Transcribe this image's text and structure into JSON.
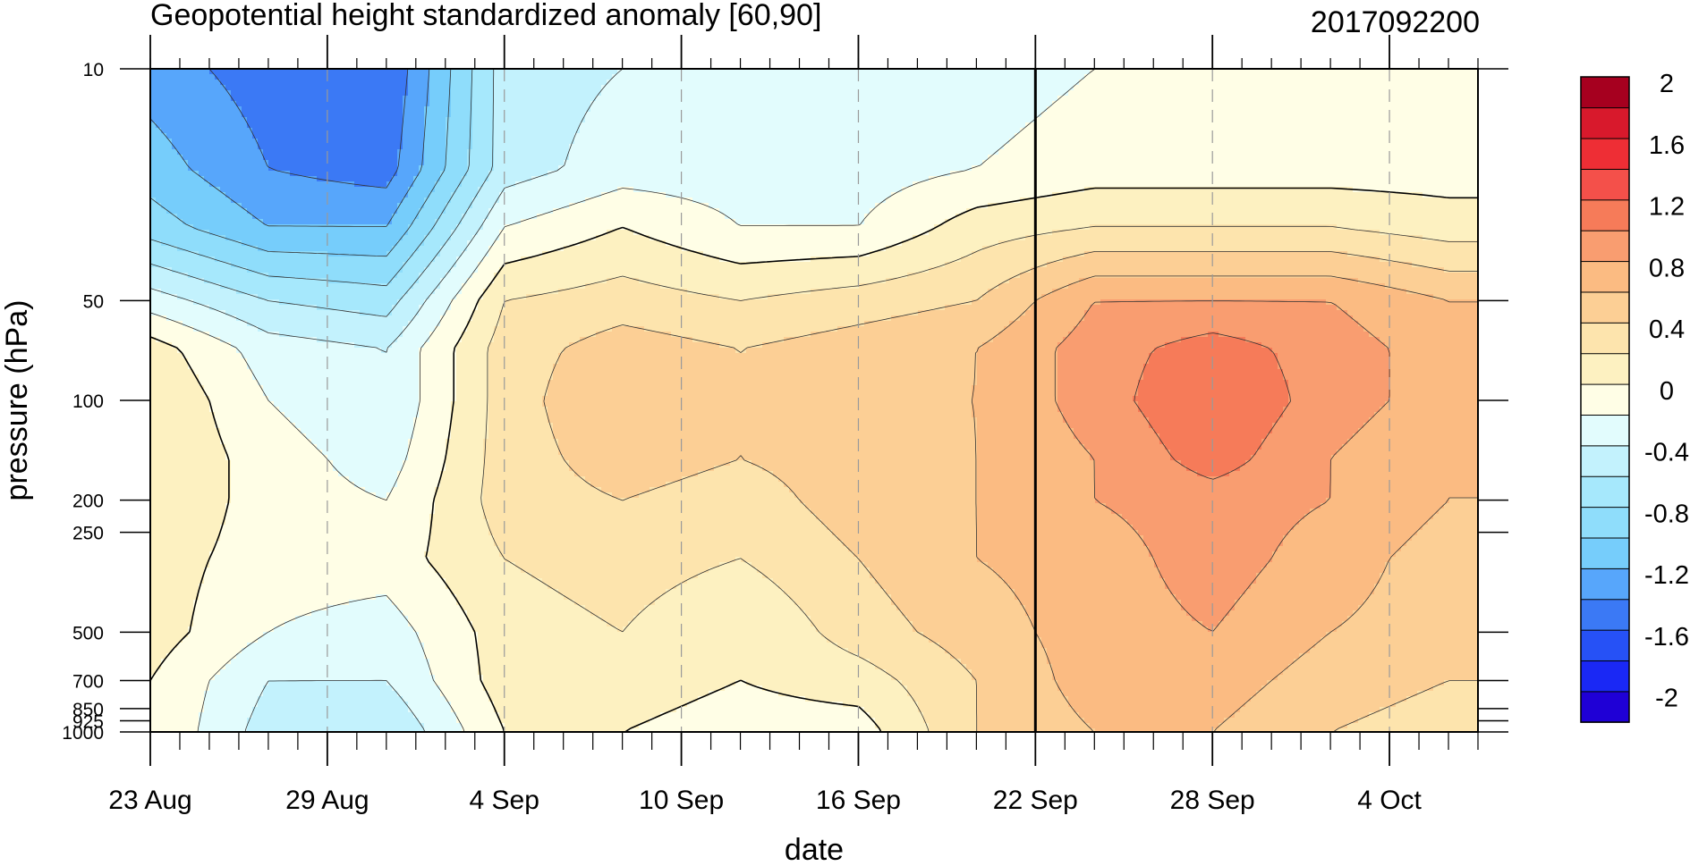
{
  "chart_data": {
    "type": "heatmap",
    "title": "Geopotential height standardized anomaly [60,90]",
    "subtitle": "2017092200",
    "xlabel": "date",
    "ylabel": "pressure (hPa)",
    "y_scale": "log",
    "y_reversed": true,
    "ylim": [
      1000,
      10
    ],
    "xlim": [
      "2017-08-23",
      "2017-10-07"
    ],
    "x_ticks": [
      {
        "date": "2017-08-23",
        "label": "23 Aug"
      },
      {
        "date": "2017-08-29",
        "label": "29 Aug"
      },
      {
        "date": "2017-09-04",
        "label": "4 Sep"
      },
      {
        "date": "2017-09-10",
        "label": "10 Sep"
      },
      {
        "date": "2017-09-16",
        "label": "16 Sep"
      },
      {
        "date": "2017-09-22",
        "label": "22 Sep"
      },
      {
        "date": "2017-09-28",
        "label": "28 Sep"
      },
      {
        "date": "2017-10-04",
        "label": "4 Oct"
      }
    ],
    "y_ticks": [
      {
        "value": 10,
        "label": "10"
      },
      {
        "value": 50,
        "label": "50"
      },
      {
        "value": 100,
        "label": "100"
      },
      {
        "value": 200,
        "label": "200"
      },
      {
        "value": 250,
        "label": "250"
      },
      {
        "value": 500,
        "label": "500"
      },
      {
        "value": 700,
        "label": "700"
      },
      {
        "value": 850,
        "label": "850"
      },
      {
        "value": 925,
        "label": "925"
      },
      {
        "value": 1000,
        "label": "1000"
      }
    ],
    "reference_line_date": "2017-09-22",
    "dashed_gridlines": true,
    "colorbar": {
      "levels": [
        -2,
        -1.8,
        -1.6,
        -1.4,
        -1.2,
        -1,
        -0.8,
        -0.6,
        -0.4,
        -0.2,
        0,
        0.2,
        0.4,
        0.6,
        0.8,
        1,
        1.2,
        1.4,
        1.6,
        1.8,
        2
      ],
      "labels": [
        {
          "level": 2,
          "text": "2"
        },
        {
          "level": 1.6,
          "text": "1.6"
        },
        {
          "level": 1.2,
          "text": "1.2"
        },
        {
          "level": 0.8,
          "text": "0.8"
        },
        {
          "level": 0.4,
          "text": "0.4"
        },
        {
          "level": 0,
          "text": "0"
        },
        {
          "level": -0.4,
          "text": "-0.4"
        },
        {
          "level": -0.8,
          "text": "-0.8"
        },
        {
          "level": -1.2,
          "text": "-1.2"
        },
        {
          "level": -1.6,
          "text": "-1.6"
        },
        {
          "level": -2,
          "text": "-2"
        }
      ],
      "colors": [
        "#1f00d6",
        "#1a28f5",
        "#2651f6",
        "#3b79f5",
        "#57a6fb",
        "#76cdfb",
        "#8fddfb",
        "#a6e8fc",
        "#c3f2fd",
        "#e2fcfd",
        "#fffee6",
        "#fdf1c1",
        "#fde4ad",
        "#fccf95",
        "#fbbb82",
        "#f99d70",
        "#f67b59",
        "#f4504a",
        "#ee2e35",
        "#d8192c",
        "#a6001f"
      ]
    },
    "x": [
      "2017-08-23",
      "2017-08-27",
      "2017-08-31",
      "2017-09-04",
      "2017-09-08",
      "2017-09-12",
      "2017-09-16",
      "2017-09-20",
      "2017-09-24",
      "2017-09-28",
      "2017-10-02",
      "2017-10-06"
    ],
    "y": [
      10,
      20,
      30,
      50,
      70,
      100,
      150,
      200,
      300,
      500,
      700,
      1000
    ],
    "z": [
      [
        -1.3,
        -1.5,
        -1.6,
        -0.5,
        -0.4,
        -0.4,
        -0.4,
        -0.3,
        -0.2,
        -0.2,
        -0.2,
        -0.2
      ],
      [
        -1.1,
        -1.4,
        -1.5,
        -0.5,
        -0.3,
        -0.3,
        -0.3,
        -0.2,
        -0.1,
        -0.1,
        -0.1,
        -0.1
      ],
      [
        -0.9,
        -1.2,
        -1.2,
        -0.2,
        0.0,
        -0.2,
        -0.2,
        0.1,
        0.2,
        0.2,
        0.2,
        0.1
      ],
      [
        -0.3,
        -0.6,
        -0.7,
        0.2,
        0.3,
        0.2,
        0.3,
        0.4,
        0.8,
        0.8,
        0.8,
        0.6
      ],
      [
        0.1,
        -0.3,
        -0.4,
        0.3,
        0.5,
        0.4,
        0.5,
        0.6,
        0.9,
        1.1,
        0.9,
        0.7
      ],
      [
        0.2,
        -0.2,
        -0.4,
        0.3,
        0.6,
        0.4,
        0.6,
        0.6,
        0.9,
        1.2,
        0.9,
        0.7
      ],
      [
        0.2,
        -0.1,
        -0.3,
        0.3,
        0.5,
        0.4,
        0.5,
        0.6,
        0.8,
        1.1,
        0.8,
        0.6
      ],
      [
        0.2,
        -0.1,
        -0.2,
        0.3,
        0.4,
        0.3,
        0.5,
        0.6,
        0.8,
        0.9,
        0.8,
        0.6
      ],
      [
        0.1,
        -0.1,
        -0.1,
        0.2,
        0.3,
        0.2,
        0.4,
        0.6,
        0.7,
        0.9,
        0.7,
        0.5
      ],
      [
        0.1,
        -0.2,
        -0.3,
        0.1,
        0.2,
        0.0,
        0.3,
        0.5,
        0.7,
        0.8,
        0.6,
        0.5
      ],
      [
        0.0,
        -0.4,
        -0.4,
        0.1,
        0.1,
        0.0,
        0.1,
        0.4,
        0.7,
        0.7,
        0.5,
        0.4
      ],
      [
        0.0,
        -0.5,
        -0.6,
        0.0,
        0.0,
        -0.1,
        -0.1,
        0.4,
        0.6,
        0.6,
        0.4,
        0.3
      ]
    ]
  }
}
